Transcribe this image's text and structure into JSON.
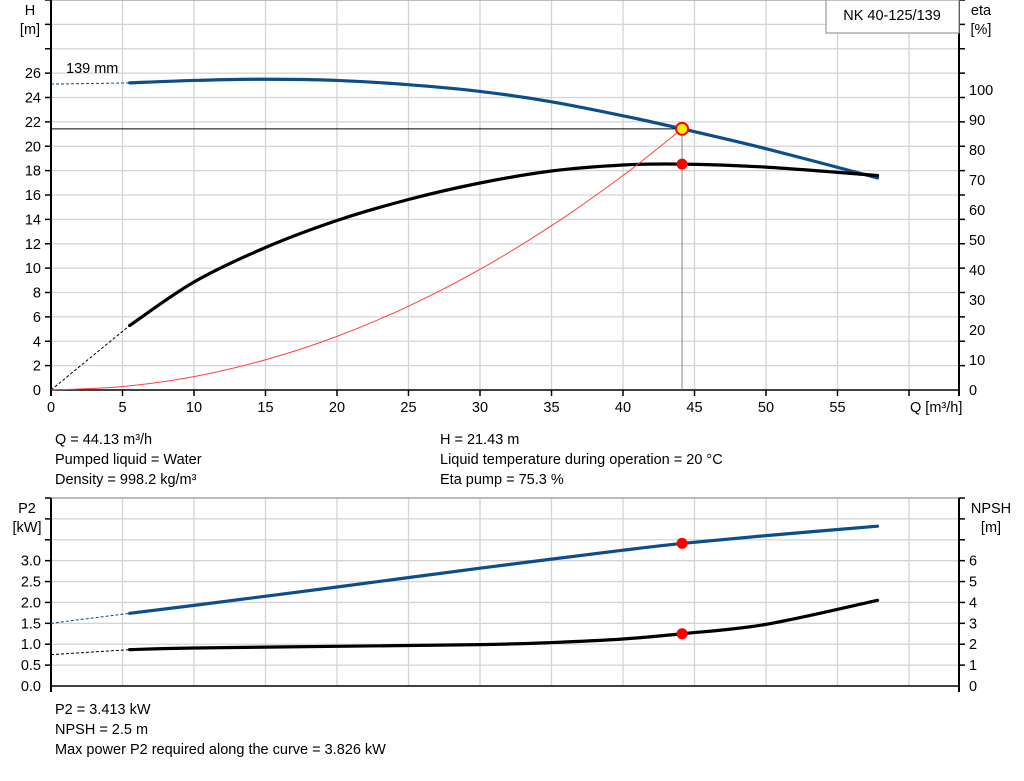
{
  "title": "NK 40-125/139",
  "colors": {
    "head": "#0c4e8a",
    "eta": "#000000",
    "system": "#ff4040",
    "p2": "#0c4e8a",
    "npsh": "#000000",
    "duty_point": "#ff0000",
    "duty_point_h": "#ffee00",
    "grid": "#d4d4d4"
  },
  "chart_data": [
    {
      "type": "line",
      "xlabel": "Q [m³/h]",
      "ylabel_left": [
        "H",
        "[m]"
      ],
      "ylabel_right": [
        "eta",
        "[%]"
      ],
      "xlim": [
        0,
        63
      ],
      "ylim_left": [
        0,
        32
      ],
      "ylim_right": [
        0,
        130
      ],
      "x_ticks": [
        "0",
        "5",
        "10",
        "15",
        "20",
        "25",
        "30",
        "35",
        "40",
        "45",
        "50",
        "55"
      ],
      "y_left_ticks": [
        "0",
        "2",
        "4",
        "6",
        "8",
        "10",
        "12",
        "14",
        "16",
        "18",
        "20",
        "22",
        "24",
        "26"
      ],
      "y_right_ticks": [
        "0",
        "10",
        "20",
        "30",
        "40",
        "50",
        "60",
        "70",
        "80",
        "90",
        "100"
      ],
      "grid": true,
      "impeller_label": "139 mm",
      "series": [
        {
          "key": "head",
          "axis": "left",
          "extrapolated": [
            [
              0,
              25.1
            ],
            [
              5.5,
              25.2
            ]
          ],
          "points": [
            [
              5.5,
              25.2
            ],
            [
              10,
              25.4
            ],
            [
              15,
              25.5
            ],
            [
              20,
              25.4
            ],
            [
              25,
              25.05
            ],
            [
              30,
              24.5
            ],
            [
              35,
              23.65
            ],
            [
              40,
              22.5
            ],
            [
              44.13,
              21.43
            ],
            [
              50,
              19.8
            ],
            [
              57.8,
              17.4
            ]
          ]
        },
        {
          "key": "eta",
          "axis": "right",
          "extrapolated": [
            [
              0,
              0
            ],
            [
              5.5,
              21.5
            ]
          ],
          "points": [
            [
              5.5,
              21.5
            ],
            [
              10,
              36
            ],
            [
              15,
              47.5
            ],
            [
              20,
              56.5
            ],
            [
              25,
              63.5
            ],
            [
              30,
              69
            ],
            [
              35,
              73
            ],
            [
              40,
              75
            ],
            [
              44.13,
              75.3
            ],
            [
              50,
              74.3
            ],
            [
              57.8,
              71.5
            ]
          ]
        },
        {
          "key": "system",
          "axis": "left",
          "points": [
            [
              0,
              0
            ],
            [
              5,
              0.28
            ],
            [
              10,
              1.1
            ],
            [
              15,
              2.48
            ],
            [
              20,
              4.4
            ],
            [
              25,
              6.88
            ],
            [
              30,
              9.9
            ],
            [
              35,
              13.48
            ],
            [
              40,
              17.6
            ],
            [
              44.13,
              21.43
            ]
          ]
        }
      ],
      "duty_point": {
        "Q": 44.13,
        "H": 21.43,
        "eta": 75.3
      }
    },
    {
      "type": "line",
      "xlim": [
        0,
        63
      ],
      "ylabel_left": [
        "P2",
        "[kW]"
      ],
      "ylabel_right": [
        "NPSH",
        "[m]"
      ],
      "ylim_left": [
        0,
        4.5
      ],
      "ylim_right": [
        0,
        9
      ],
      "y_left_ticks": [
        "0.0",
        "0.5",
        "1.0",
        "1.5",
        "2.0",
        "2.5",
        "3.0"
      ],
      "y_right_ticks": [
        "0",
        "1",
        "2",
        "3",
        "4",
        "5",
        "6"
      ],
      "grid": true,
      "series": [
        {
          "key": "p2",
          "axis": "left",
          "extrapolated": [
            [
              0,
              1.5
            ],
            [
              5.5,
              1.74
            ]
          ],
          "points": [
            [
              5.5,
              1.74
            ],
            [
              10,
              1.93
            ],
            [
              20,
              2.37
            ],
            [
              30,
              2.82
            ],
            [
              40,
              3.25
            ],
            [
              44.13,
              3.413
            ],
            [
              50,
              3.6
            ],
            [
              57.8,
              3.826
            ]
          ]
        },
        {
          "key": "npsh",
          "axis": "right",
          "extrapolated": [
            [
              0,
              1.5
            ],
            [
              5.5,
              1.74
            ]
          ],
          "points": [
            [
              5.5,
              1.74
            ],
            [
              10,
              1.82
            ],
            [
              20,
              1.9
            ],
            [
              30,
              1.98
            ],
            [
              35,
              2.08
            ],
            [
              40,
              2.25
            ],
            [
              44.13,
              2.5
            ],
            [
              50,
              2.95
            ],
            [
              57.8,
              4.1
            ]
          ]
        }
      ],
      "duty_point": {
        "Q": 44.13,
        "P2": 3.413,
        "NPSH": 2.5
      }
    }
  ],
  "info_top": {
    "q": "Q = 44.13 m³/h",
    "liquid": "Pumped liquid = Water",
    "density": "Density = 998.2 kg/m³",
    "h": "H = 21.43 m",
    "temp": "Liquid temperature during operation = 20 °C",
    "eta": "Eta pump = 75.3 %"
  },
  "info_bottom": {
    "p2": "P2 = 3.413 kW",
    "npsh": "NPSH = 2.5 m",
    "max_p2": "Max power P2 required along the curve = 3.826 kW"
  }
}
